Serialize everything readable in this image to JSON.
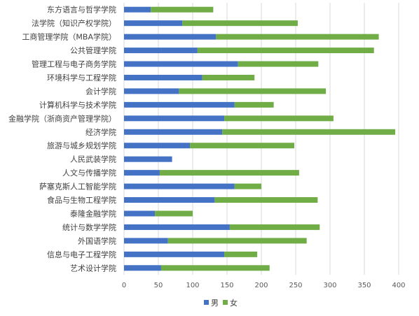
{
  "chart_data": {
    "type": "bar",
    "orientation": "horizontal",
    "stacked": true,
    "categories": [
      "东方语言与哲学学院",
      "法学院（知识产权学院）",
      "工商管理学院（MBA学院）",
      "公共管理学院",
      "管理工程与电子商务学院",
      "环境科学与工程学院",
      "会计学院",
      "计算机科学与技术学院",
      "金融学院（浙商资产管理学院）",
      "经济学院",
      "旅游与城乡规划学院",
      "人民武装学院",
      "人文与传播学院",
      "萨塞克斯人工智能学院",
      "食品与生物工程学院",
      "泰隆金融学院",
      "统计与数学学院",
      "外国语学院",
      "信息与电子工程学院",
      "艺术设计学院"
    ],
    "series": [
      {
        "name": "男",
        "color": "#4472c4",
        "values": [
          39,
          85,
          134,
          107,
          166,
          114,
          80,
          161,
          146,
          143,
          96,
          70,
          52,
          161,
          132,
          45,
          154,
          64,
          146,
          54
        ]
      },
      {
        "name": "女",
        "color": "#70ad47",
        "values": [
          91,
          168,
          237,
          257,
          117,
          76,
          214,
          57,
          159,
          252,
          152,
          0,
          203,
          39,
          150,
          55,
          131,
          202,
          48,
          158
        ]
      }
    ],
    "xlim": [
      0,
      400
    ],
    "xticks": [
      "0",
      "50",
      "100",
      "150",
      "200",
      "250",
      "300",
      "350",
      "400"
    ],
    "xlabel": "",
    "ylabel": "",
    "title": "",
    "grid": true,
    "legend_position": "bottom"
  }
}
